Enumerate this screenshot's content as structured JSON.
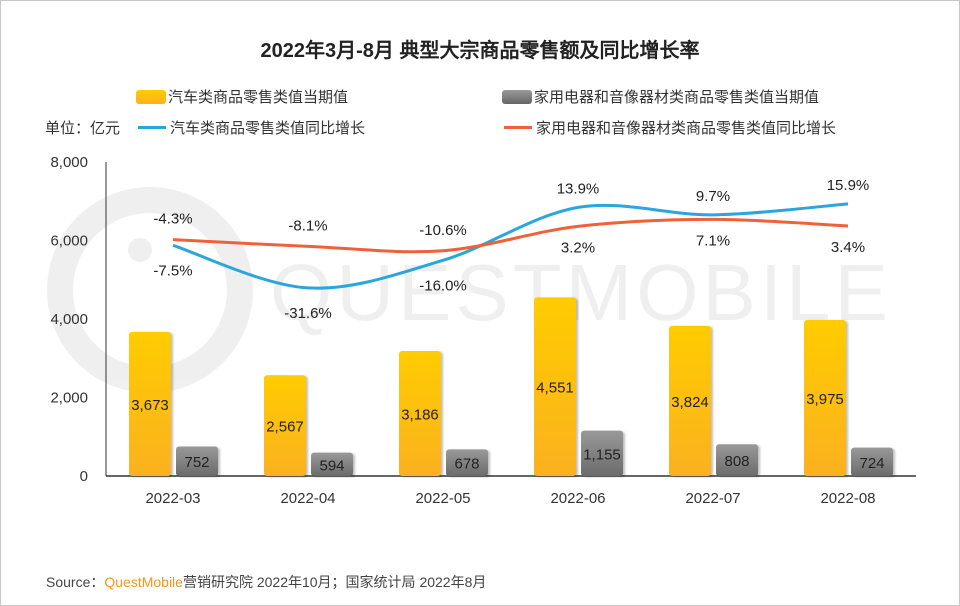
{
  "chart_data": {
    "type": "bar+line",
    "title": "2022年3月-8月 典型大宗商品零售额及同比增长率",
    "unit_label": "单位：亿元",
    "categories": [
      "2022-03",
      "2022-04",
      "2022-05",
      "2022-06",
      "2022-07",
      "2022-08"
    ],
    "y_ticks": [
      "0",
      "2,000",
      "4,000",
      "6,000",
      "8,000"
    ],
    "ylim": [
      0,
      8000
    ],
    "grid": false,
    "legend_position": "top",
    "bar_series": [
      {
        "name": "汽车类商品零售类值当期值",
        "color": "#fdb918",
        "values": [
          3673,
          2567,
          3186,
          4551,
          3824,
          3975
        ],
        "labels": [
          "3,673",
          "2,567",
          "3,186",
          "4,551",
          "3,824",
          "3,975"
        ]
      },
      {
        "name": "家用电器和音像器材类商品零售类值当期值",
        "color": "#7a7a7a",
        "values": [
          752,
          594,
          678,
          1155,
          808,
          724
        ],
        "labels": [
          "752",
          "594",
          "678",
          "1,155",
          "808",
          "724"
        ]
      }
    ],
    "line_series": [
      {
        "name": "汽车类商品零售类值同比增长",
        "color": "#2aa6dc",
        "values": [
          -7.5,
          -31.6,
          -16.0,
          13.9,
          9.7,
          15.9
        ],
        "labels": [
          "-7.5%",
          "-31.6%",
          "-16.0%",
          "13.9%",
          "9.7%",
          "15.9%"
        ]
      },
      {
        "name": "家用电器和音像器材类商品零售类值同比增长",
        "color": "#ef6139",
        "values": [
          -4.3,
          -8.1,
          -10.6,
          3.2,
          7.1,
          3.4
        ],
        "labels": [
          "-4.3%",
          "-8.1%",
          "-10.6%",
          "3.2%",
          "7.1%",
          "3.4%"
        ]
      }
    ]
  },
  "watermark": "QUESTMOBILE",
  "source": {
    "prefix": "Source：",
    "brand": "QuestMobile",
    "rest": "营销研究院 2022年10月；国家统计局 2022年8月"
  }
}
